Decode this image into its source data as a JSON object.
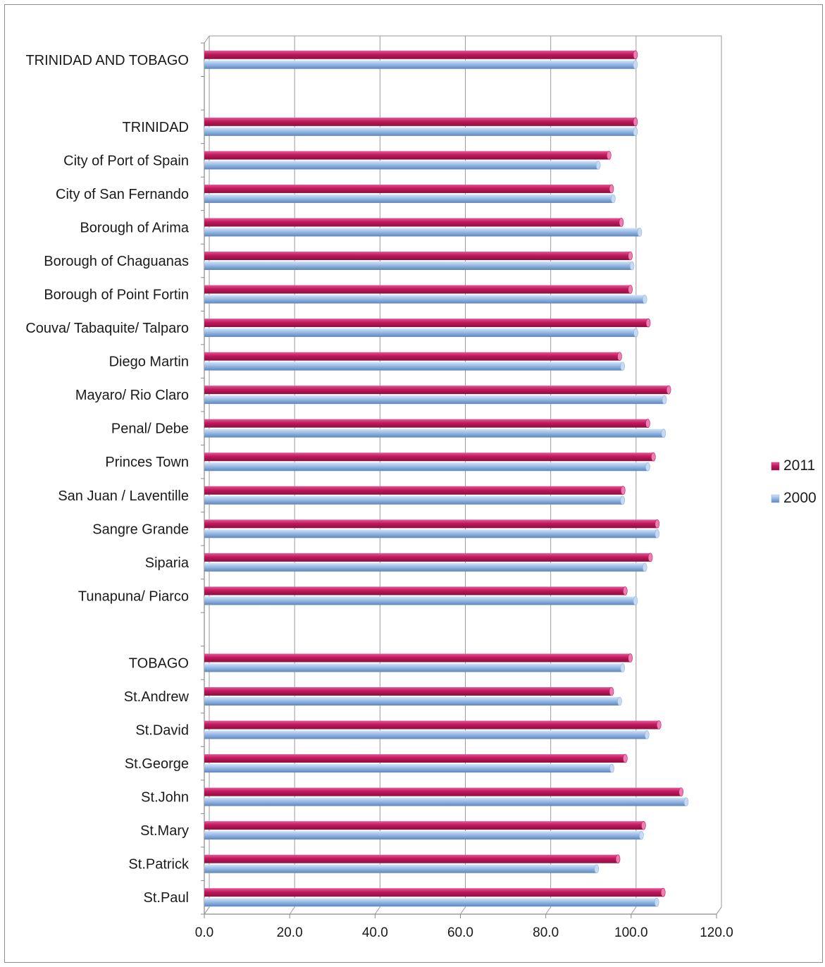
{
  "chart_data": {
    "type": "bar",
    "orientation": "horizontal",
    "categories": [
      "TRINIDAD AND TOBAGO",
      "",
      "TRINIDAD",
      "City of Port of Spain",
      "City of San Fernando",
      "Borough of Arima",
      "Borough of Chaguanas",
      "Borough of Point Fortin",
      "Couva/ Tabaquite/ Talparo",
      "Diego Martin",
      "Mayaro/ Rio Claro",
      "Penal/ Debe",
      "Princes Town",
      "San Juan / Laventille",
      "Sangre Grande",
      "Siparia",
      "Tunapuna/ Piarco",
      "",
      "TOBAGO",
      "St.Andrew",
      "St.David",
      "St.George",
      "St.John",
      "St.Mary",
      "St.Patrick",
      "St.Paul"
    ],
    "series": [
      {
        "name": "2011",
        "color": "#c2185b",
        "values": [
          101.0,
          null,
          101.0,
          94.8,
          95.4,
          97.7,
          99.8,
          99.8,
          104.0,
          97.3,
          108.8,
          103.9,
          105.2,
          98.1,
          106.1,
          104.5,
          98.6,
          null,
          99.8,
          95.4,
          106.5,
          98.6,
          111.7,
          102.9,
          96.9,
          107.5
        ]
      },
      {
        "name": "2000",
        "color": "#8fb4e3",
        "values": [
          101.0,
          null,
          101.0,
          92.3,
          95.8,
          102.0,
          100.2,
          103.2,
          101.1,
          98.0,
          107.8,
          107.6,
          103.9,
          98.0,
          106.1,
          103.2,
          101.0,
          null,
          98.0,
          97.3,
          103.7,
          95.5,
          112.9,
          102.4,
          91.9,
          106.0
        ]
      }
    ],
    "title": "",
    "xlabel": "",
    "ylabel": "",
    "xlim": [
      0,
      120
    ],
    "xticks": [
      "0.0",
      "20.0",
      "40.0",
      "60.0",
      "80.0",
      "100.0",
      "120.0"
    ],
    "grid": "vertical gridlines",
    "legend": {
      "placement": "right",
      "entries": [
        "2011",
        "2000"
      ]
    }
  }
}
